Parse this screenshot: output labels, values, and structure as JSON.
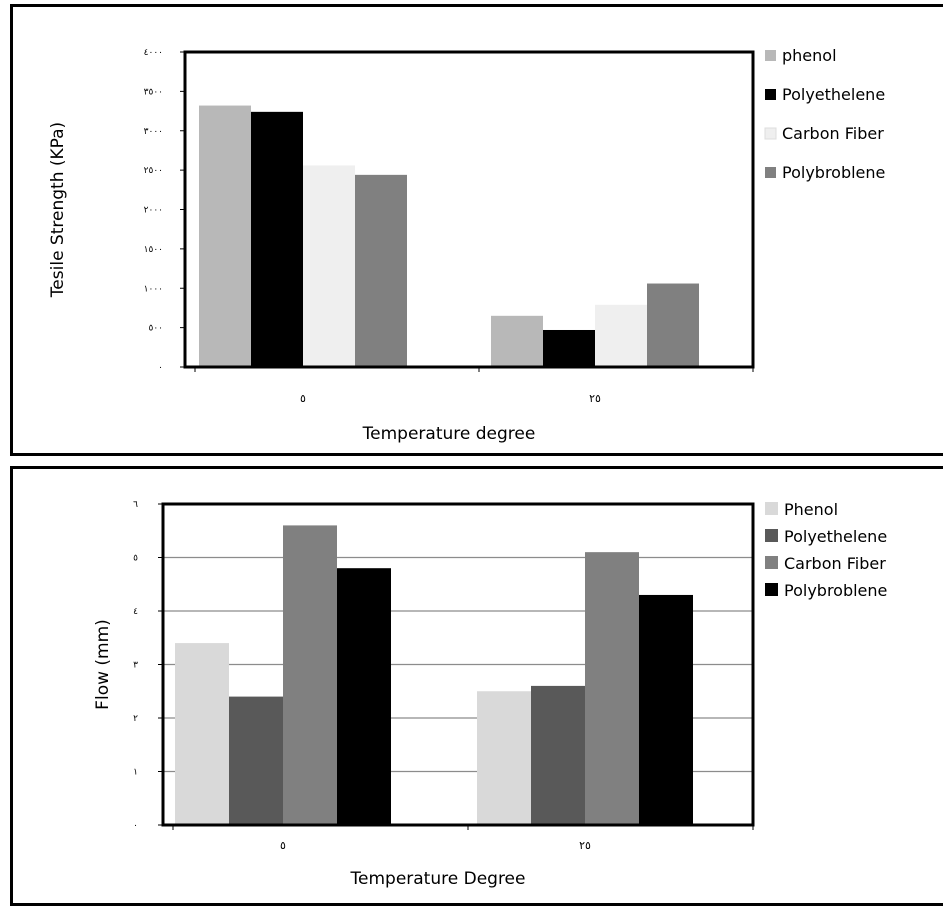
{
  "chart_data": [
    {
      "type": "bar",
      "xlabel": "Temperature degree",
      "ylabel": "Tesile Strength (KPa)",
      "categories": [
        "٥",
        "٢٥"
      ],
      "yticks": [
        "٠",
        "٥٠٠",
        "١٠٠٠",
        "١٥٠٠",
        "٢٠٠٠",
        "٢٥٠٠",
        "٣٠٠٠",
        "٣٥٠٠",
        "٤٠٠٠"
      ],
      "ylim": [
        0,
        4000
      ],
      "grid": false,
      "legend_position": "right",
      "series": [
        {
          "name": "phenol",
          "color": "#b8b8b8",
          "values": [
            3320,
            650
          ]
        },
        {
          "name": "Polyethelene",
          "color": "#000000",
          "values": [
            3240,
            470
          ]
        },
        {
          "name": "Carbon Fiber",
          "color": "#efefef",
          "values": [
            2560,
            790
          ]
        },
        {
          "name": "Polybroblene",
          "color": "#808080",
          "values": [
            2440,
            1060
          ]
        }
      ]
    },
    {
      "type": "bar",
      "xlabel": "Temperature Degree",
      "ylabel": "Flow (mm)",
      "categories": [
        "٥",
        "٢٥"
      ],
      "yticks": [
        "٠",
        "١",
        "٢",
        "٣",
        "٤",
        "٥",
        "٦"
      ],
      "ylim": [
        0,
        6
      ],
      "grid": true,
      "legend_position": "right",
      "series": [
        {
          "name": "Phenol",
          "color": "#d9d9d9",
          "values": [
            3.4,
            2.5
          ]
        },
        {
          "name": "Polyethelene",
          "color": "#595959",
          "values": [
            2.4,
            2.6
          ]
        },
        {
          "name": "Carbon Fiber",
          "color": "#808080",
          "values": [
            5.6,
            5.1
          ]
        },
        {
          "name": "Polybroblene",
          "color": "#000000",
          "values": [
            4.8,
            4.3
          ]
        }
      ]
    }
  ]
}
